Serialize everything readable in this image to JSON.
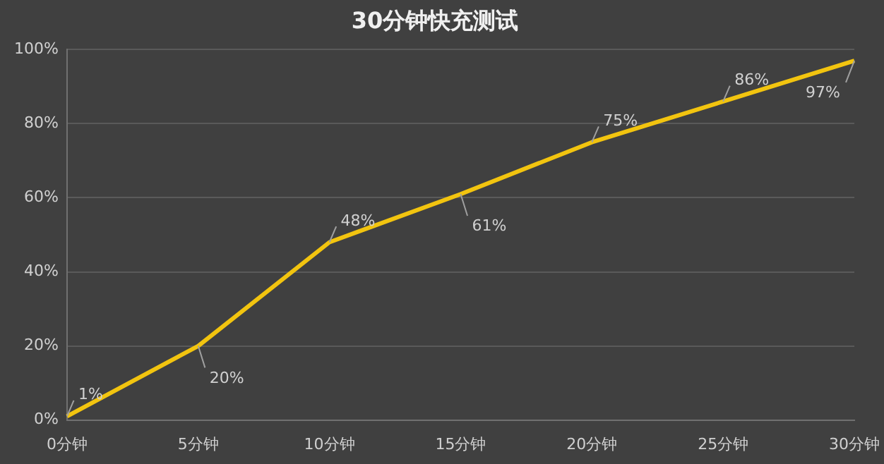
{
  "chart_data": {
    "type": "line",
    "title": "30分钟快充测试",
    "categories": [
      "0分钟",
      "5分钟",
      "10分钟",
      "15分钟",
      "20分钟",
      "25分钟",
      "30分钟"
    ],
    "series": [
      {
        "color": "#f2c40f",
        "values": [
          1,
          20,
          48,
          61,
          75,
          86,
          97
        ]
      }
    ],
    "ylim": [
      0,
      100
    ],
    "yticks": [
      {
        "value": 0,
        "label": "0%"
      },
      {
        "value": 20,
        "label": "20%"
      },
      {
        "value": 40,
        "label": "40%"
      },
      {
        "value": 60,
        "label": "60%"
      },
      {
        "value": 80,
        "label": "80%"
      },
      {
        "value": 100,
        "label": "100%"
      }
    ],
    "value_labels": [
      "1%",
      "20%",
      "48%",
      "61%",
      "75%",
      "86%",
      "97%"
    ],
    "grid": "y",
    "legend": false,
    "marker": "none",
    "line_style": "solid"
  }
}
